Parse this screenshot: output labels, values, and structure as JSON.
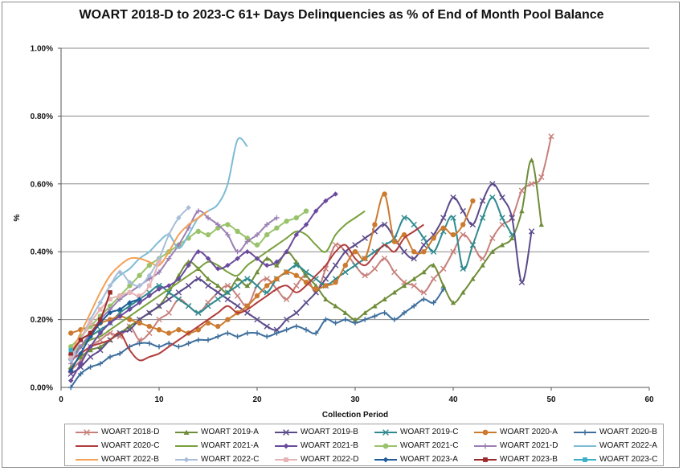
{
  "chart_data": {
    "type": "line",
    "title": "WOART 2018-D to 2023-C 61+ Days Delinquencies as % of End of Month Pool Balance",
    "xlabel": "Collection Period",
    "ylabel": "%",
    "xlim": [
      0,
      60
    ],
    "ylim": [
      0,
      1.0
    ],
    "x_ticks": [
      "0",
      "10",
      "20",
      "30",
      "40",
      "50",
      "60"
    ],
    "y_ticks": [
      "0.00%",
      "0.20%",
      "0.40%",
      "0.60%",
      "0.80%",
      "1.00%"
    ],
    "grid": "horizontal",
    "legend_position": "bottom",
    "series": [
      {
        "name": "WOART 2018-D",
        "color": "#c8807b",
        "marker": "x",
        "values": [
          0.05,
          0.08,
          0.12,
          0.14,
          0.16,
          0.15,
          0.18,
          0.14,
          0.16,
          0.2,
          0.22,
          0.26,
          0.24,
          0.22,
          0.25,
          0.28,
          0.3,
          0.27,
          0.24,
          0.3,
          0.32,
          0.29,
          0.26,
          0.3,
          0.33,
          0.28,
          0.35,
          0.42,
          0.4,
          0.36,
          0.33,
          0.35,
          0.38,
          0.34,
          0.31,
          0.3,
          0.28,
          0.32,
          0.35,
          0.4,
          0.45,
          0.42,
          0.38,
          0.44,
          0.48,
          0.5,
          0.58,
          0.6,
          0.62,
          0.74
        ]
      },
      {
        "name": "WOART 2019-A",
        "color": "#6f8d38",
        "marker": "triangle",
        "values": [
          0.06,
          0.09,
          0.11,
          0.12,
          0.14,
          0.16,
          0.18,
          0.2,
          0.22,
          0.24,
          0.28,
          0.33,
          0.37,
          0.35,
          0.32,
          0.3,
          0.28,
          0.32,
          0.3,
          0.34,
          0.38,
          0.36,
          0.4,
          0.37,
          0.33,
          0.3,
          0.26,
          0.24,
          0.22,
          0.2,
          0.22,
          0.24,
          0.26,
          0.28,
          0.3,
          0.32,
          0.34,
          0.36,
          0.3,
          0.25,
          0.28,
          0.32,
          0.36,
          0.4,
          0.42,
          0.44,
          0.52,
          0.67,
          0.48
        ]
      },
      {
        "name": "WOART 2019-B",
        "color": "#5b4a8a",
        "marker": "x",
        "values": [
          0.04,
          0.06,
          0.09,
          0.11,
          0.14,
          0.16,
          0.17,
          0.2,
          0.22,
          0.24,
          0.26,
          0.28,
          0.3,
          0.32,
          0.3,
          0.28,
          0.26,
          0.24,
          0.22,
          0.2,
          0.18,
          0.17,
          0.2,
          0.22,
          0.25,
          0.28,
          0.32,
          0.36,
          0.4,
          0.42,
          0.44,
          0.46,
          0.48,
          0.44,
          0.4,
          0.38,
          0.42,
          0.45,
          0.5,
          0.56,
          0.52,
          0.48,
          0.55,
          0.6,
          0.56,
          0.5,
          0.31,
          0.46
        ]
      },
      {
        "name": "WOART 2019-C",
        "color": "#2f8a8f",
        "marker": "x",
        "values": [
          0.09,
          0.12,
          0.15,
          0.17,
          0.19,
          0.22,
          0.24,
          0.26,
          0.28,
          0.3,
          0.28,
          0.26,
          0.24,
          0.22,
          0.24,
          0.26,
          0.28,
          0.3,
          0.32,
          0.3,
          0.28,
          0.32,
          0.34,
          0.36,
          0.34,
          0.32,
          0.3,
          0.32,
          0.34,
          0.36,
          0.38,
          0.4,
          0.42,
          0.44,
          0.5,
          0.48,
          0.44,
          0.4,
          0.46,
          0.5,
          0.35,
          0.42,
          0.5,
          0.56,
          0.5,
          0.45
        ]
      },
      {
        "name": "WOART 2020-A",
        "color": "#cc7a2e",
        "marker": "circle",
        "values": [
          0.16,
          0.17,
          0.18,
          0.19,
          0.2,
          0.21,
          0.2,
          0.19,
          0.18,
          0.17,
          0.16,
          0.17,
          0.16,
          0.17,
          0.19,
          0.18,
          0.2,
          0.22,
          0.24,
          0.27,
          0.3,
          0.32,
          0.34,
          0.33,
          0.31,
          0.29,
          0.3,
          0.31,
          0.36,
          0.4,
          0.38,
          0.48,
          0.57,
          0.43,
          0.45,
          0.4,
          0.4,
          0.44,
          0.47,
          0.45,
          0.48,
          0.55
        ]
      },
      {
        "name": "WOART 2020-B",
        "color": "#3d6e9c",
        "marker": "plus",
        "values": [
          0.0,
          0.04,
          0.06,
          0.07,
          0.09,
          0.1,
          0.12,
          0.13,
          0.13,
          0.12,
          0.13,
          0.12,
          0.13,
          0.14,
          0.14,
          0.15,
          0.16,
          0.15,
          0.16,
          0.16,
          0.15,
          0.16,
          0.17,
          0.18,
          0.17,
          0.16,
          0.2,
          0.19,
          0.2,
          0.19,
          0.2,
          0.21,
          0.22,
          0.2,
          0.22,
          0.24,
          0.26,
          0.25,
          0.29
        ]
      },
      {
        "name": "WOART 2020-C",
        "color": "#b13c3c",
        "marker": "none",
        "values": [
          0.08,
          0.1,
          0.12,
          0.13,
          0.14,
          0.16,
          0.11,
          0.08,
          0.09,
          0.1,
          0.12,
          0.14,
          0.16,
          0.18,
          0.2,
          0.22,
          0.24,
          0.22,
          0.23,
          0.25,
          0.27,
          0.29,
          0.3,
          0.28,
          0.3,
          0.33,
          0.36,
          0.4,
          0.42,
          0.38,
          0.36,
          0.39,
          0.42,
          0.4,
          0.44,
          0.46,
          0.48
        ]
      },
      {
        "name": "WOART 2021-A",
        "color": "#78a03c",
        "marker": "none",
        "values": [
          0.1,
          0.12,
          0.14,
          0.15,
          0.17,
          0.19,
          0.21,
          0.23,
          0.25,
          0.27,
          0.29,
          0.31,
          0.33,
          0.35,
          0.37,
          0.36,
          0.34,
          0.33,
          0.36,
          0.38,
          0.4,
          0.42,
          0.44,
          0.46,
          0.45,
          0.42,
          0.4,
          0.45,
          0.48,
          0.5,
          0.52
        ]
      },
      {
        "name": "WOART 2021-B",
        "color": "#6a4a9c",
        "marker": "diamond",
        "values": [
          0.02,
          0.07,
          0.12,
          0.16,
          0.19,
          0.21,
          0.23,
          0.25,
          0.27,
          0.29,
          0.3,
          0.32,
          0.36,
          0.4,
          0.38,
          0.35,
          0.36,
          0.38,
          0.4,
          0.38,
          0.36,
          0.37,
          0.4,
          0.45,
          0.48,
          0.52,
          0.55,
          0.57
        ]
      },
      {
        "name": "WOART 2021-C",
        "color": "#99c36a",
        "marker": "circle",
        "values": [
          0.12,
          0.15,
          0.18,
          0.21,
          0.24,
          0.27,
          0.3,
          0.33,
          0.36,
          0.38,
          0.4,
          0.42,
          0.44,
          0.46,
          0.45,
          0.47,
          0.48,
          0.46,
          0.44,
          0.42,
          0.45,
          0.47,
          0.49,
          0.5,
          0.52
        ]
      },
      {
        "name": "WOART 2021-D",
        "color": "#9b7fb4",
        "marker": "plus",
        "values": [
          0.07,
          0.12,
          0.16,
          0.2,
          0.23,
          0.26,
          0.28,
          0.3,
          0.32,
          0.34,
          0.38,
          0.42,
          0.47,
          0.52,
          0.5,
          0.48,
          0.45,
          0.4,
          0.43,
          0.45,
          0.48,
          0.5
        ]
      },
      {
        "name": "WOART 2022-A",
        "color": "#7cbcd4",
        "marker": "none",
        "values": [
          0.08,
          0.14,
          0.2,
          0.25,
          0.3,
          0.33,
          0.35,
          0.38,
          0.4,
          0.43,
          0.45,
          0.41,
          0.45,
          0.5,
          0.52,
          0.54,
          0.6,
          0.73,
          0.71
        ]
      },
      {
        "name": "WOART 2022-B",
        "color": "#f4a055",
        "marker": "none",
        "values": [
          0.1,
          0.16,
          0.22,
          0.28,
          0.33,
          0.36,
          0.38,
          0.38,
          0.37,
          0.36,
          0.4,
          0.45,
          0.48,
          0.5,
          0.52
        ]
      },
      {
        "name": "WOART 2022-C",
        "color": "#a8bed8",
        "marker": "diamond",
        "values": [
          0.08,
          0.14,
          0.2,
          0.25,
          0.3,
          0.34,
          0.31,
          0.3,
          0.33,
          0.38,
          0.45,
          0.5,
          0.53
        ]
      },
      {
        "name": "WOART 2022-D",
        "color": "#e6b4b4",
        "marker": "square",
        "values": [
          0.09,
          0.14,
          0.19,
          0.23,
          0.26,
          0.27,
          0.28,
          0.27,
          0.3,
          0.37
        ]
      },
      {
        "name": "WOART 2023-A",
        "color": "#1f5c99",
        "marker": "diamond",
        "values": [
          0.05,
          0.1,
          0.15,
          0.19,
          0.22,
          0.23,
          0.25,
          0.26
        ]
      },
      {
        "name": "WOART 2023-B",
        "color": "#9c2a2a",
        "marker": "square",
        "values": [
          0.1,
          0.14,
          0.16,
          0.2,
          0.28
        ]
      },
      {
        "name": "WOART 2023-C",
        "color": "#3ab0c8",
        "marker": "square",
        "values": [
          0.11
        ]
      }
    ]
  }
}
